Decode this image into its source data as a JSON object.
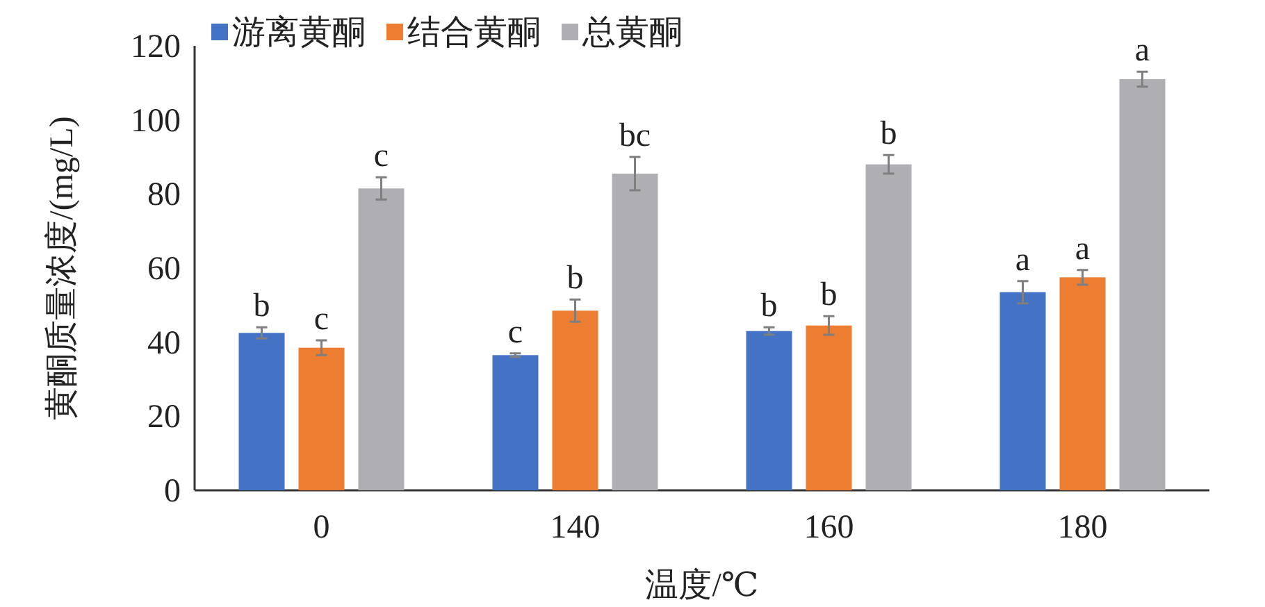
{
  "chart_data": {
    "type": "bar",
    "xlabel": "温度/℃",
    "ylabel": "黄酮质量浓度/(mg/L)",
    "categories": [
      "0",
      "140",
      "160",
      "180"
    ],
    "series": [
      {
        "name": "游离黄酮",
        "color": "#4472c4",
        "values": [
          42.5,
          36.5,
          43,
          53.5
        ],
        "errors": [
          1.5,
          0.5,
          1,
          3
        ],
        "value_labels": [
          "b",
          "c",
          "b",
          "a"
        ]
      },
      {
        "name": "结合黄酮",
        "color": "#ed7d31",
        "values": [
          38.5,
          48.5,
          44.5,
          57.5
        ],
        "errors": [
          2,
          3,
          2.5,
          2
        ],
        "value_labels": [
          "c",
          "b",
          "b",
          "a"
        ]
      },
      {
        "name": "总黄酮",
        "color": "#afafb3",
        "values": [
          81.5,
          85.5,
          88,
          111
        ],
        "errors": [
          3,
          4.5,
          2.5,
          2
        ],
        "value_labels": [
          "c",
          "bc",
          "b",
          "a"
        ]
      }
    ],
    "ylim": [
      0,
      120
    ],
    "yticks": [
      0,
      20,
      40,
      60,
      80,
      100,
      120
    ],
    "legend": "top"
  }
}
